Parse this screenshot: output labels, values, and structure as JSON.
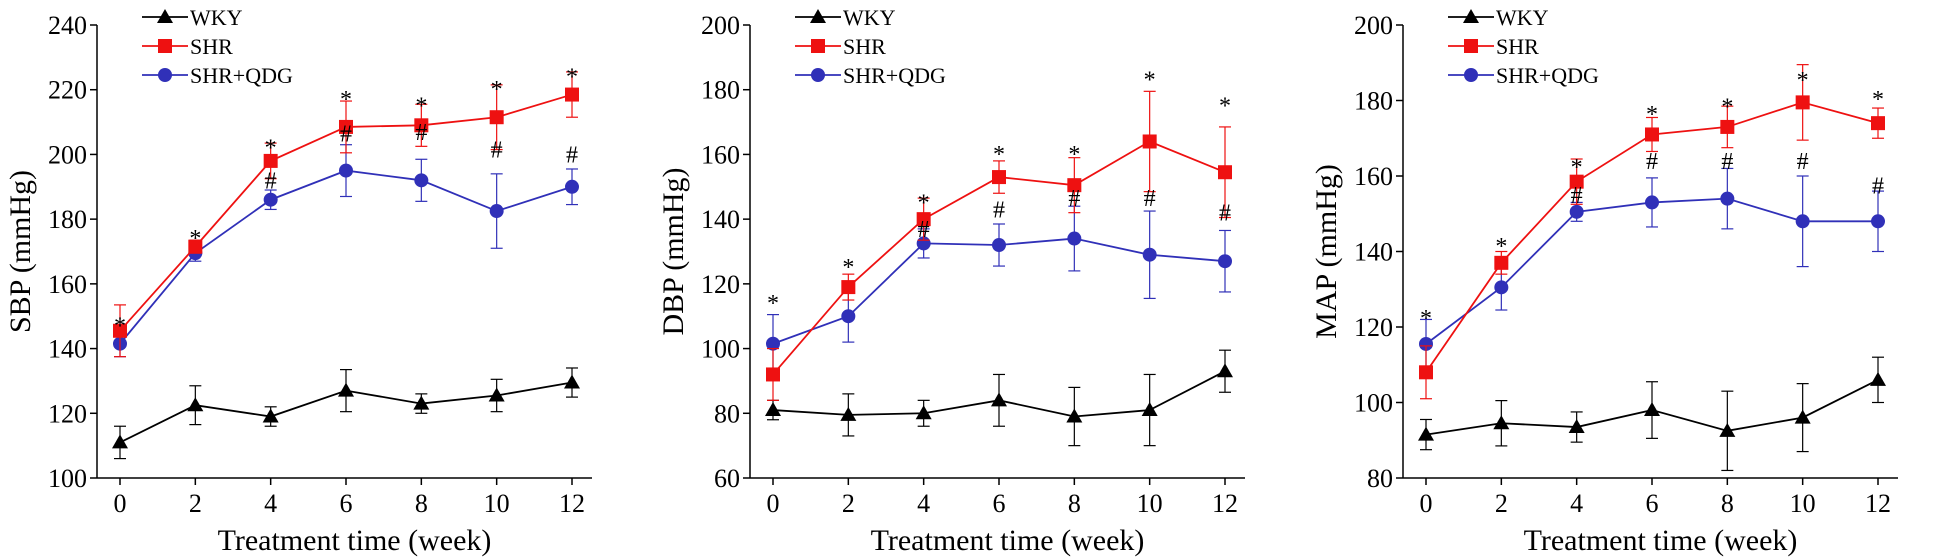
{
  "colors": {
    "WKY": "#000000",
    "SHR": "#ee1111",
    "SHR+QDG": "#3030b8"
  },
  "chart_data": [
    {
      "type": "line",
      "xlabel": "Treatment time (week)",
      "ylabel": "SBP (mmHg)",
      "x": [
        0,
        2,
        4,
        6,
        8,
        10,
        12
      ],
      "xlim": [
        0,
        12
      ],
      "ylim": [
        100,
        240
      ],
      "yticks": [
        100,
        120,
        140,
        160,
        180,
        200,
        220,
        240
      ],
      "legend": [
        "WKY",
        "SHR",
        "SHR+QDG"
      ],
      "series": [
        {
          "name": "WKY",
          "marker": "triangle",
          "values": [
            111,
            122.5,
            119,
            127,
            123,
            125.5,
            129.5
          ],
          "errors": [
            5,
            6,
            3,
            6.5,
            3,
            5,
            4.5
          ]
        },
        {
          "name": "SHR",
          "marker": "square",
          "values": [
            145.5,
            171.5,
            198,
            208.5,
            209,
            211.5,
            218.5
          ],
          "errors": [
            8,
            2,
            5.5,
            8,
            6.5,
            10,
            7
          ]
        },
        {
          "name": "SHR+QDG",
          "marker": "circle",
          "values": [
            141.5,
            169.5,
            186,
            195,
            192,
            182.5,
            190
          ],
          "errors": [
            4,
            2.5,
            3,
            8,
            6.5,
            11.5,
            5.5
          ]
        }
      ],
      "annotations": {
        "star": {
          "symbol": "*",
          "values": [
            149,
            176,
            204,
            219,
            217,
            222,
            226
          ]
        },
        "hash": {
          "symbol": "#",
          "values": [
            null,
            null,
            192,
            206.5,
            207,
            201.5,
            200
          ]
        }
      }
    },
    {
      "type": "line",
      "xlabel": "Treatment time (week)",
      "ylabel": "DBP (mmHg)",
      "x": [
        0,
        2,
        4,
        6,
        8,
        10,
        12
      ],
      "xlim": [
        0,
        12
      ],
      "ylim": [
        60,
        200
      ],
      "yticks": [
        60,
        80,
        100,
        120,
        140,
        160,
        180,
        200
      ],
      "legend": [
        "WKY",
        "SHR",
        "SHR+QDG"
      ],
      "series": [
        {
          "name": "WKY",
          "marker": "triangle",
          "values": [
            81,
            79.5,
            80,
            84,
            79,
            81,
            93
          ],
          "errors": [
            3,
            6.5,
            4,
            8,
            9,
            11,
            6.5
          ]
        },
        {
          "name": "SHR",
          "marker": "square",
          "values": [
            92,
            119,
            140,
            153,
            150.5,
            164,
            154.5
          ],
          "errors": [
            8,
            4,
            6.5,
            5,
            8.5,
            15.5,
            14
          ]
        },
        {
          "name": "SHR+QDG",
          "marker": "circle",
          "values": [
            101.5,
            110,
            132.5,
            132,
            134,
            129,
            127
          ],
          "errors": [
            9,
            8,
            4.5,
            6.5,
            10,
            13.5,
            9.5
          ]
        }
      ],
      "annotations": {
        "star": {
          "symbol": "*",
          "values": [
            116,
            127,
            147,
            162,
            162,
            185,
            177
          ]
        },
        "hash": {
          "symbol": "#",
          "values": [
            null,
            null,
            137,
            143,
            146.5,
            146.5,
            142
          ]
        }
      }
    },
    {
      "type": "line",
      "xlabel": "Treatment time (week)",
      "ylabel": "MAP (mmHg)",
      "x": [
        0,
        2,
        4,
        6,
        8,
        10,
        12
      ],
      "xlim": [
        0,
        12
      ],
      "ylim": [
        80,
        200
      ],
      "yticks": [
        80,
        100,
        120,
        140,
        160,
        180,
        200
      ],
      "legend": [
        "WKY",
        "SHR",
        "SHR+QDG"
      ],
      "series": [
        {
          "name": "WKY",
          "marker": "triangle",
          "values": [
            91.5,
            94.5,
            93.5,
            98,
            92.5,
            96,
            106
          ],
          "errors": [
            4,
            6,
            4,
            7.5,
            10.5,
            9,
            6
          ]
        },
        {
          "name": "SHR",
          "marker": "square",
          "values": [
            108,
            137,
            158.5,
            171,
            173,
            179.5,
            174
          ],
          "errors": [
            7,
            3,
            6,
            4.5,
            5.5,
            10,
            4
          ]
        },
        {
          "name": "SHR+QDG",
          "marker": "circle",
          "values": [
            115.5,
            130.5,
            150.5,
            153,
            154,
            148,
            148
          ],
          "errors": [
            6.5,
            6,
            2.5,
            6.5,
            8,
            12,
            8
          ]
        }
      ],
      "annotations": {
        "star": {
          "symbol": "*",
          "values": [
            124,
            143,
            164,
            178,
            180,
            187,
            182
          ]
        },
        "hash": {
          "symbol": "#",
          "values": [
            null,
            null,
            155,
            164,
            164,
            164,
            157.5
          ]
        }
      }
    }
  ]
}
